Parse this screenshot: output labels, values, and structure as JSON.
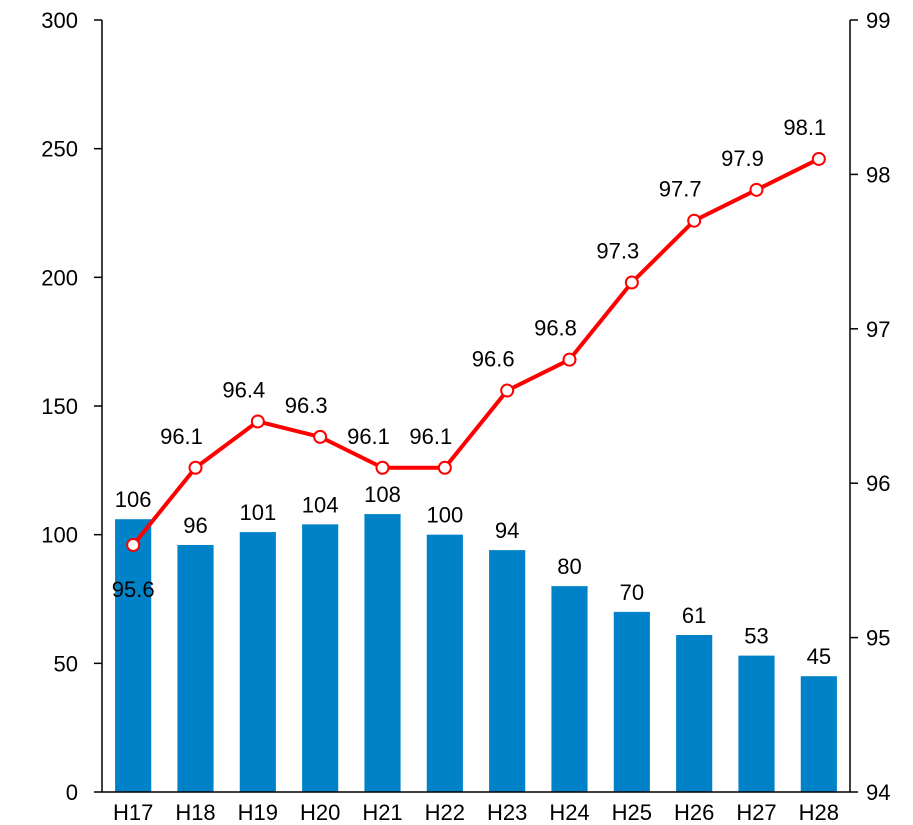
{
  "chart_data": {
    "type": "bar",
    "categories": [
      "H17",
      "H18",
      "H19",
      "H20",
      "H21",
      "H22",
      "H23",
      "H24",
      "H25",
      "H26",
      "H27",
      "H28"
    ],
    "series": [
      {
        "type": "bar",
        "axis": "left",
        "color": "#0082C8",
        "values": [
          106,
          96,
          101,
          104,
          108,
          100,
          94,
          80,
          70,
          61,
          53,
          45
        ],
        "labels": [
          "106",
          "96",
          "101",
          "104",
          "108",
          "100",
          "94",
          "80",
          "70",
          "61",
          "53",
          "45"
        ]
      },
      {
        "type": "line",
        "axis": "right",
        "color": "#FF0000",
        "marker": "open-circle",
        "values": [
          95.6,
          96.1,
          96.4,
          96.3,
          96.1,
          96.1,
          96.6,
          96.8,
          97.3,
          97.7,
          97.9,
          98.1
        ],
        "labels": [
          "95.6",
          "96.1",
          "96.4",
          "96.3",
          "96.1",
          "96.1",
          "96.6",
          "96.8",
          "97.3",
          "97.7",
          "97.9",
          "98.1"
        ]
      }
    ],
    "ylim_left": [
      0,
      300
    ],
    "yticks_left": [
      0,
      50,
      100,
      150,
      200,
      250,
      300
    ],
    "yticks_left_labels": [
      "0",
      "50",
      "100",
      "150",
      "200",
      "250",
      "300"
    ],
    "ylim_right": [
      94,
      99
    ],
    "yticks_right": [
      94,
      95,
      96,
      97,
      98,
      99
    ],
    "yticks_right_labels": [
      "94",
      "95",
      "96",
      "97",
      "98",
      "99"
    ],
    "title": "",
    "xlabel": "",
    "ylabel": "",
    "grid": false,
    "legend": "none"
  }
}
